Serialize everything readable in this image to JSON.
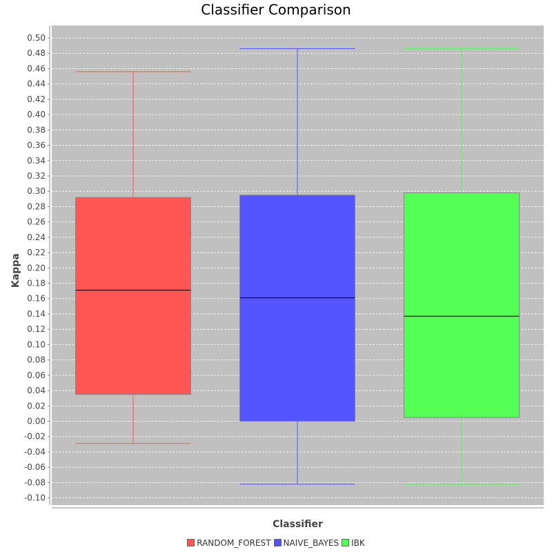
{
  "chart_data": {
    "type": "boxplot",
    "title": "Classifier Comparison",
    "xlabel": "Classifier",
    "ylabel": "Kappa",
    "ylim": [
      -0.11,
      0.515
    ],
    "y_ticks": [
      "0.50",
      "0.48",
      "0.46",
      "0.44",
      "0.42",
      "0.40",
      "0.38",
      "0.36",
      "0.34",
      "0.32",
      "0.30",
      "0.28",
      "0.26",
      "0.24",
      "0.22",
      "0.20",
      "0.18",
      "0.16",
      "0.14",
      "0.12",
      "0.10",
      "0.08",
      "0.06",
      "0.04",
      "0.02",
      "0.00",
      "-0.02",
      "-0.04",
      "-0.06",
      "-0.08",
      "-0.10"
    ],
    "grid": true,
    "legend_position": "bottom",
    "plot_background": "#c0c0c0",
    "series": [
      {
        "name": "RANDOM_FOREST",
        "color": "#ff5555",
        "whisker_low": -0.029,
        "q1": 0.035,
        "median": 0.171,
        "q3": 0.292,
        "whisker_high": 0.456
      },
      {
        "name": "NAIVE_BAYES",
        "color": "#5555ff",
        "whisker_low": -0.082,
        "q1": 0.0,
        "median": 0.161,
        "q3": 0.295,
        "whisker_high": 0.486
      },
      {
        "name": "IBK",
        "color": "#55ff55",
        "whisker_low": -0.082,
        "q1": 0.005,
        "median": 0.137,
        "q3": 0.298,
        "whisker_high": 0.486
      }
    ]
  }
}
